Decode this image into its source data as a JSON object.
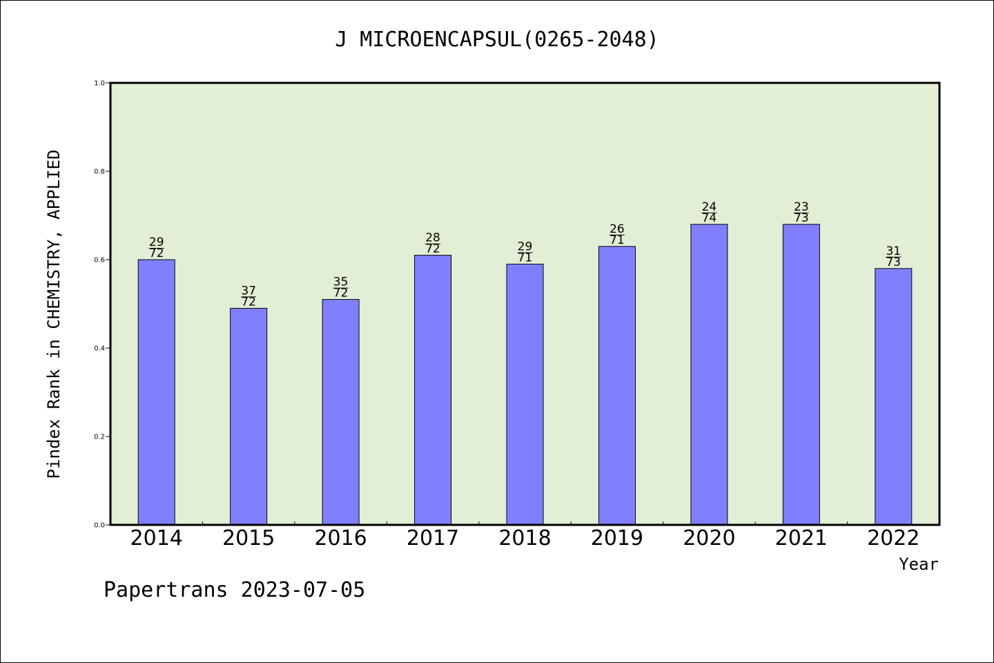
{
  "chart_data": {
    "type": "bar",
    "title": "J MICROENCAPSUL(0265-2048)",
    "ylabel": "Pindex Rank in CHEMISTRY, APPLIED",
    "xlabel": "Year",
    "categories": [
      "2014",
      "2015",
      "2016",
      "2017",
      "2018",
      "2019",
      "2020",
      "2021",
      "2022"
    ],
    "values": [
      0.6,
      0.49,
      0.51,
      0.61,
      0.59,
      0.63,
      0.68,
      0.68,
      0.58
    ],
    "ranks": [
      "29",
      "37",
      "35",
      "28",
      "29",
      "26",
      "24",
      "23",
      "31"
    ],
    "totals": [
      "72",
      "72",
      "72",
      "72",
      "71",
      "71",
      "74",
      "73",
      "73"
    ],
    "ylim": [
      0,
      1.0
    ],
    "yticks": [
      "0.0",
      "0.2",
      "0.4",
      "0.6",
      "0.8",
      "1.0"
    ],
    "grid": false,
    "colors": {
      "bar": "#8080ff",
      "plot_bg": "#e2efd6",
      "axis": "#000000"
    }
  },
  "footer": "Papertrans 2023-07-05"
}
